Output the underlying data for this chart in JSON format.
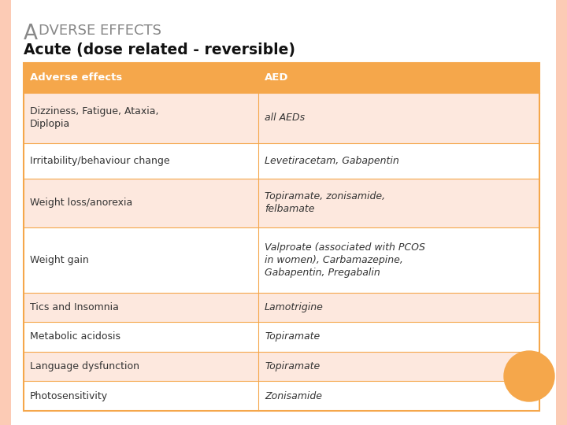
{
  "title_A": "A",
  "title_rest": "DVERSE EFFECTS",
  "subtitle": "Acute (dose related - reversible)",
  "header": [
    "Adverse effects",
    "AED"
  ],
  "rows": [
    [
      "Dizziness, Fatigue, Ataxia,\nDiplopia",
      "all AEDs"
    ],
    [
      "Irritability/behaviour change",
      "Levetiracetam, Gabapentin"
    ],
    [
      "Weight loss/anorexia",
      "Topiramate, zonisamide,\nfelbamate"
    ],
    [
      "Weight gain",
      "Valproate (associated with PCOS\nin women), Carbamazepine,\nGabapentin, Pregabalin"
    ],
    [
      "Tics and Insomnia",
      "Lamotrigine"
    ],
    [
      "Metabolic acidosis",
      "Topiramate"
    ],
    [
      "Language dysfunction",
      "Topiramate"
    ],
    [
      "Photosensitivity",
      "Zonisamide"
    ]
  ],
  "header_bg": "#F5A74B",
  "row_bg_odd": "#FDE8DE",
  "row_bg_even": "#FFFFFF",
  "header_text_color": "#FFFFFF",
  "row_text_color": "#333333",
  "title_color": "#888888",
  "subtitle_color": "#111111",
  "page_bg": "#FFFFFF",
  "page_border_color": "#F5B8A0",
  "table_border_color": "#F5A74B",
  "orange_circle_color": "#F5A74B",
  "col_split": 0.455,
  "row_heights_rel": [
    1.0,
    1.7,
    1.2,
    1.65,
    2.2,
    1.0,
    1.0,
    1.0,
    1.0
  ]
}
